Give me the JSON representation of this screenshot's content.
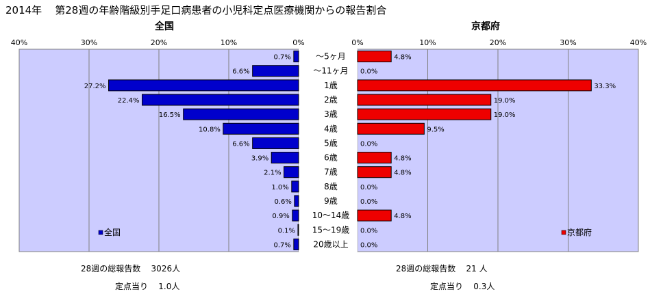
{
  "header": {
    "year": "2014年",
    "title": "第28週の年齢階級別手足口病患者の小児科定点医療機関からの報告割合"
  },
  "chart_data": [
    {
      "type": "bar",
      "orientation": "horizontal",
      "direction": "right-to-left",
      "title": "全国",
      "legend": "全国",
      "legend_placement": "bottom-left",
      "xlim": [
        0,
        40
      ],
      "ticks": [
        "40%",
        "30%",
        "20%",
        "10%",
        "0%"
      ],
      "grid": true,
      "color": "#0000cc",
      "categories": [
        "～5ヶ月",
        "～11ヶ月",
        "1歳",
        "2歳",
        "3歳",
        "4歳",
        "5歳",
        "6歳",
        "7歳",
        "8歳",
        "9歳",
        "10～14歳",
        "15～19歳",
        "20歳以上"
      ],
      "values": [
        0.7,
        6.6,
        27.2,
        22.4,
        16.5,
        10.8,
        6.6,
        3.9,
        2.1,
        1.0,
        0.6,
        0.9,
        0.1,
        0.7
      ],
      "labels": [
        "0.7%",
        "6.6%",
        "27.2%",
        "22.4%",
        "16.5%",
        "10.8%",
        "6.6%",
        "3.9%",
        "2.1%",
        "1.0%",
        "0.6%",
        "0.9%",
        "0.1%",
        "0.7%"
      ]
    },
    {
      "type": "bar",
      "orientation": "horizontal",
      "direction": "left-to-right",
      "title": "京都府",
      "legend": "京都府",
      "legend_placement": "bottom-right",
      "xlim": [
        0,
        40
      ],
      "ticks": [
        "0%",
        "10%",
        "20%",
        "30%",
        "40%"
      ],
      "grid": true,
      "color": "#ee0000",
      "categories": [
        "～5ヶ月",
        "～11ヶ月",
        "1歳",
        "2歳",
        "3歳",
        "4歳",
        "5歳",
        "6歳",
        "7歳",
        "8歳",
        "9歳",
        "10～14歳",
        "15～19歳",
        "20歳以上"
      ],
      "values": [
        4.8,
        0.0,
        33.3,
        19.0,
        19.0,
        9.5,
        0.0,
        4.8,
        4.8,
        0.0,
        0.0,
        4.8,
        0.0,
        0.0
      ],
      "labels": [
        "4.8%",
        "0.0%",
        "33.3%",
        "19.0%",
        "19.0%",
        "9.5%",
        "0.0%",
        "4.8%",
        "4.8%",
        "0.0%",
        "0.0%",
        "4.8%",
        "0.0%",
        "0.0%"
      ]
    }
  ],
  "footer": {
    "national": {
      "total_label": "28週の総報告数",
      "total_value": "3026人",
      "per_label": "定点当り",
      "per_value": "1.0人"
    },
    "kyoto": {
      "total_label": "28週の総報告数",
      "total_value": "21 人",
      "per_label": "定点当り",
      "per_value": "0.3人"
    }
  }
}
